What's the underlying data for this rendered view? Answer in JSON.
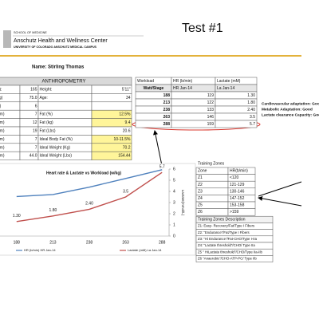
{
  "header": {
    "school": "SCHOOL OF MEDICINE",
    "center": "Anschutz Health and Wellness Center",
    "campus": "UNIVERSITY OF COLORADO ANSCHUTZ MEDICAL CAMPUS",
    "title": "Test #1"
  },
  "name": "Name: Stirling Thomas",
  "anthropometry": {
    "title": "ANTHROPOMETRY",
    "rows": [
      [
        "lb):",
        "165",
        "Height:",
        "5'11\""
      ],
      [
        "Kg)",
        "75.0",
        "Age:",
        "34"
      ],
      [
        "m)",
        "6"
      ],
      [
        "mm)",
        "7",
        "Fat (%)",
        "12.5%"
      ],
      [
        "mm)",
        "12",
        "Fat (kg)",
        "9.4"
      ],
      [
        "mm)",
        "19",
        "Fat (Lbs)",
        "20.6"
      ],
      [
        "mm)",
        "7",
        "Ideal Body Fat (%)",
        "10-11.5%"
      ],
      [
        "mm)",
        "7",
        "Ideal Weight (Kg)",
        "70.2"
      ],
      [
        "mm)",
        "44.0",
        "Ideal Weight (Lbs)",
        "154.44"
      ]
    ]
  },
  "workload": {
    "header": [
      "Workload",
      "HR (b/min)",
      "Lactate (mM)"
    ],
    "subheader": [
      "Watt/Stage",
      "HR Jan-14",
      "La Jan-14"
    ],
    "rows": [
      [
        "188",
        "119",
        "1.30"
      ],
      [
        "213",
        "122",
        "1.80"
      ],
      [
        "238",
        "133",
        "2.40"
      ],
      [
        "263",
        "146",
        "3.5"
      ],
      [
        "288",
        "159",
        "5.7"
      ]
    ]
  },
  "assessment": [
    "Cardiovascular adaptation: Good",
    "Metabolic Adaptation: Good",
    "Lactate clearance Capacity: Good"
  ],
  "chart_data": {
    "type": "line",
    "title": "Heart rate & Lactate vs Workload (w/kg)",
    "categories": [
      188,
      213,
      238,
      263,
      288
    ],
    "series": [
      {
        "name": "HR (b/min) HR Jan-14",
        "color": "#4f81bd",
        "values": [
          119,
          122,
          133,
          146,
          159
        ]
      },
      {
        "name": "Lactate (mM) La Jan-14",
        "color": "#c0504d",
        "values": [
          1.3,
          1.8,
          2.4,
          3.5,
          5.7
        ],
        "value_labels": [
          "1.30",
          "1.80",
          "2.40",
          "3.5",
          "5.7"
        ],
        "axis": "y2"
      }
    ],
    "ylim": [
      60,
      160
    ],
    "y2lim": [
      0,
      6
    ],
    "y2ticks": [
      0,
      1,
      2,
      3,
      4,
      5,
      6
    ],
    "y2label": "Lactate(mmol/L)"
  },
  "training_zones": {
    "title": "Training Zones",
    "header": [
      "Zone",
      "HR(b/min)"
    ],
    "rows": [
      [
        "Z1",
        "<120"
      ],
      [
        "Z2",
        "121-129"
      ],
      [
        "Z3",
        "130-146"
      ],
      [
        "Z4",
        "147-152"
      ],
      [
        "Z5",
        "153-158"
      ],
      [
        "Z6",
        ">159"
      ]
    ],
    "description_title": "Training Zones Description",
    "descriptions": [
      "Z1: Easy- Recovery/Fat/Type I Fibers",
      "Z2: \"Endurance\"/Fat/Type I Fibers",
      "Z3: \"Hi Endurance\"/Fat-CHO/Type I-IIa",
      "Z4: \"Lactate threshold\"/CHO/ Type IIa",
      "Z5 \" HiLactate threshold\"/CHO/Type IIa-IIb",
      "Z6 \"Anaerobic\"/CHO-ATP-PC/ Type IIb"
    ]
  }
}
